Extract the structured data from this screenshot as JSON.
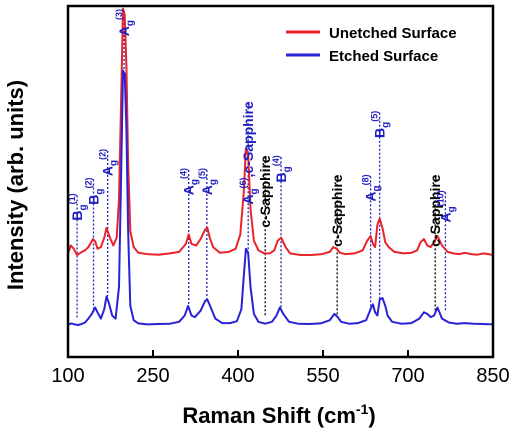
{
  "chart_data": {
    "type": "line",
    "title": "",
    "xlabel": "Raman Shift (cm",
    "xlabel_sup": "-1",
    "xlabel_end": ")",
    "ylabel": "Intensity (arb. units)",
    "xlim": [
      100,
      850
    ],
    "ylim": [
      0,
      1
    ],
    "grid": false,
    "legend": "top-right",
    "x_ticks": [
      {
        "value": 100,
        "label": "100"
      },
      {
        "value": 250,
        "label": "250"
      },
      {
        "value": 400,
        "label": "400"
      },
      {
        "value": 550,
        "label": "550"
      },
      {
        "value": 700,
        "label": "700"
      },
      {
        "value": 850,
        "label": "850"
      }
    ],
    "series": [
      {
        "name": "Unetched Surface",
        "color": "#e8242a",
        "offset": 0.215,
        "baseline": 0.0,
        "x": [
          100,
          105,
          110,
          116,
          122,
          130,
          136,
          144,
          148,
          152,
          158,
          164,
          168,
          174,
          180,
          186,
          190,
          194,
          197,
          200,
          203,
          206,
          210,
          216,
          224,
          240,
          260,
          280,
          296,
          308,
          313,
          318,
          326,
          334,
          342,
          346,
          350,
          356,
          368,
          384,
          396,
          404,
          410,
          414,
          418,
          422,
          428,
          436,
          446,
          456,
          464,
          470,
          476,
          484,
          492,
          510,
          530,
          548,
          562,
          568,
          574,
          580,
          590,
          606,
          620,
          628,
          634,
          638,
          642,
          646,
          650,
          655,
          660,
          666,
          676,
          692,
          706,
          716,
          722,
          728,
          734,
          740,
          746,
          752,
          760,
          770,
          780,
          790,
          800,
          812,
          822,
          834,
          850
        ],
        "values": [
          0.01,
          0.035,
          0.025,
          0.005,
          0.012,
          0.02,
          0.03,
          0.055,
          0.048,
          0.025,
          0.03,
          0.06,
          0.09,
          0.06,
          0.035,
          0.06,
          0.18,
          0.52,
          0.78,
          0.76,
          0.6,
          0.3,
          0.08,
          0.03,
          0.012,
          0.008,
          0.006,
          0.01,
          0.015,
          0.04,
          0.07,
          0.04,
          0.035,
          0.055,
          0.085,
          0.09,
          0.06,
          0.03,
          0.012,
          0.015,
          0.025,
          0.07,
          0.2,
          0.34,
          0.32,
          0.15,
          0.05,
          0.02,
          0.01,
          0.01,
          0.02,
          0.05,
          0.06,
          0.03,
          0.01,
          0.005,
          0.005,
          0.008,
          0.015,
          0.03,
          0.025,
          0.012,
          0.008,
          0.01,
          0.02,
          0.05,
          0.065,
          0.04,
          0.03,
          0.1,
          0.12,
          0.09,
          0.045,
          0.03,
          0.015,
          0.01,
          0.012,
          0.02,
          0.045,
          0.055,
          0.035,
          0.03,
          0.045,
          0.065,
          0.035,
          0.015,
          0.01,
          0.008,
          0.012,
          0.008,
          0.006,
          0.01,
          0.005
        ]
      },
      {
        "name": "Etched Surface",
        "color": "#2a22d6",
        "offset": 0.0,
        "x": [
          100,
          106,
          112,
          118,
          124,
          130,
          136,
          142,
          148,
          152,
          158,
          164,
          168,
          172,
          178,
          184,
          190,
          194,
          197,
          200,
          203,
          206,
          210,
          216,
          224,
          240,
          260,
          280,
          296,
          306,
          312,
          318,
          324,
          334,
          342,
          346,
          352,
          360,
          372,
          386,
          398,
          406,
          410,
          414,
          418,
          422,
          428,
          436,
          448,
          460,
          468,
          474,
          480,
          490,
          506,
          526,
          546,
          562,
          570,
          576,
          582,
          596,
          612,
          626,
          634,
          638,
          642,
          646,
          650,
          655,
          660,
          664,
          672,
          688,
          706,
          720,
          728,
          734,
          740,
          746,
          752,
          760,
          772,
          786,
          800,
          816,
          832,
          850
        ],
        "values": [
          0.0,
          0.005,
          0.002,
          0.0,
          0.003,
          0.008,
          0.02,
          0.035,
          0.055,
          0.04,
          0.02,
          0.05,
          0.09,
          0.07,
          0.03,
          0.02,
          0.12,
          0.5,
          0.8,
          0.79,
          0.62,
          0.3,
          0.06,
          0.015,
          0.005,
          0.002,
          0.003,
          0.004,
          0.01,
          0.03,
          0.06,
          0.03,
          0.025,
          0.045,
          0.075,
          0.08,
          0.055,
          0.02,
          0.006,
          0.006,
          0.012,
          0.05,
          0.15,
          0.24,
          0.225,
          0.12,
          0.035,
          0.01,
          0.004,
          0.01,
          0.03,
          0.055,
          0.035,
          0.01,
          0.004,
          0.003,
          0.005,
          0.015,
          0.035,
          0.025,
          0.01,
          0.004,
          0.006,
          0.015,
          0.05,
          0.065,
          0.04,
          0.03,
          0.08,
          0.085,
          0.06,
          0.03,
          0.01,
          0.004,
          0.006,
          0.02,
          0.04,
          0.035,
          0.025,
          0.03,
          0.055,
          0.02,
          0.008,
          0.004,
          0.006,
          0.004,
          0.003,
          0.002
        ]
      }
    ],
    "annotations": [
      {
        "x": 116,
        "main": "B",
        "sub": "g",
        "sup": "(1)",
        "color": "#1f1fbf",
        "line_top": 0.42,
        "line_bottom": 0.02
      },
      {
        "x": 145,
        "main": "B",
        "sub": "g",
        "sup": "(2)",
        "color": "#1f1fbf",
        "line_top": 0.47,
        "line_bottom": 0.04
      },
      {
        "x": 170,
        "main": "A",
        "sub": "g",
        "sup": "(2)",
        "color": "#1f1fbf",
        "line_top": 0.56,
        "line_bottom": 0.09
      },
      {
        "x": 199,
        "main": "A",
        "sub": "g",
        "sup": "(3)",
        "color": "#1f1fbf",
        "line_top": 1.0,
        "line_bottom": 0.8
      },
      {
        "x": 313,
        "main": "A",
        "sub": "g",
        "sup": "(4)",
        "color": "#1f1fbf",
        "line_top": 0.5,
        "line_bottom": 0.05
      },
      {
        "x": 345,
        "main": "A",
        "sub": "g",
        "sup": "(5)",
        "color": "#1f1fbf",
        "line_top": 0.5,
        "line_bottom": 0.08
      },
      {
        "x": 418,
        "main": "A",
        "sub": "g",
        "sup": "(6)",
        "extra": ",c-Sapphire",
        "color": "#1f1fbf",
        "line_top": 0.71,
        "line_bottom": 0.225
      },
      {
        "x": 448,
        "main": "c-Sapphire",
        "color": "#000000",
        "line_top": 0.54,
        "line_bottom": 0.03
      },
      {
        "x": 476,
        "main": "B",
        "sub": "g",
        "sup": "(4)",
        "color": "#1f1fbf",
        "line_top": 0.54,
        "line_bottom": 0.055
      },
      {
        "x": 575,
        "main": "c-Sapphire",
        "color": "#000000",
        "line_top": 0.48,
        "line_bottom": 0.03
      },
      {
        "x": 634,
        "main": "A",
        "sub": "g",
        "sup": "(8)",
        "color": "#1f1fbf",
        "line_top": 0.48,
        "line_bottom": 0.05
      },
      {
        "x": 650,
        "main": "B",
        "sub": "g",
        "sup": "(5)",
        "color": "#1f1fbf",
        "line_top": 0.68,
        "line_bottom": 0.08
      },
      {
        "x": 748,
        "main": "c-Sapphire",
        "color": "#000000",
        "line_top": 0.48,
        "line_bottom": 0.04
      },
      {
        "x": 766,
        "main": "A",
        "sub": "g",
        "sup": "(10)",
        "color": "#1f1fbf",
        "line_top": 0.43,
        "line_bottom": 0.04
      }
    ]
  }
}
